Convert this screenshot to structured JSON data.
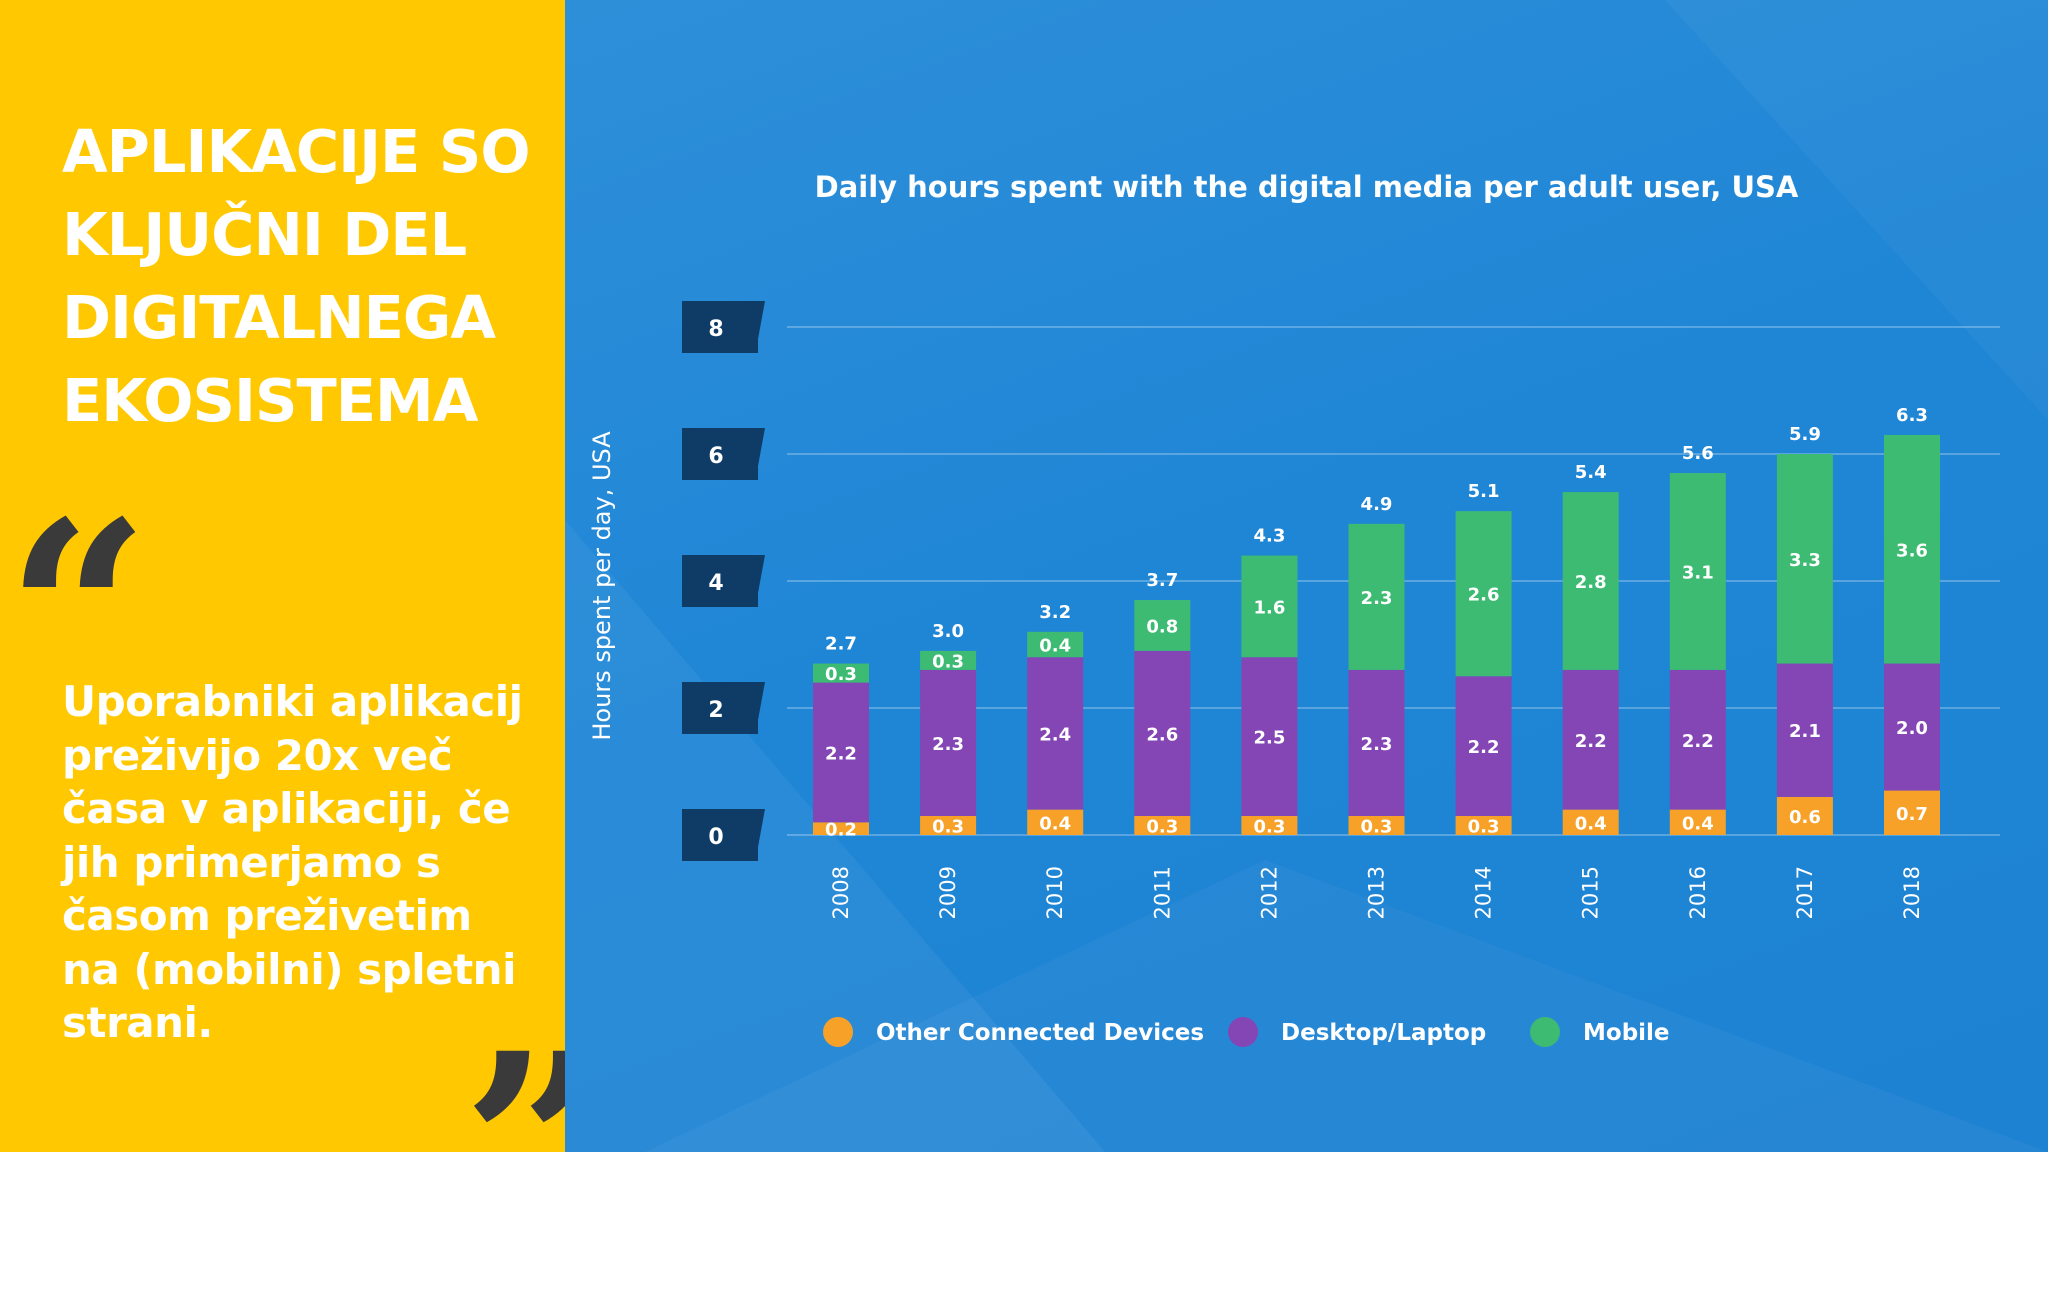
{
  "left_panel": {
    "heading": "APLIKACIJE SO\nKLJUČNI DEL\nDIGITALNEGA\nEKOSISTEMA",
    "quote_open": "“",
    "quote_text": "Uporabniki aplikacij\npreživijo 20x več\nčasa v aplikaciji, če\njih primerjamo s\nčasom preživetim\nna (mobilni) spletni\nstrani.",
    "quote_close": "”",
    "background_color": "#FFC800"
  },
  "chart_data": {
    "type": "bar",
    "stacked": true,
    "title": "Daily hours spent with the digital media per adult user, USA",
    "ylabel": "Hours spent per day, USA",
    "xlabel": "",
    "ylim": [
      0,
      8
    ],
    "yticks": [
      0,
      2,
      4,
      6,
      8
    ],
    "grid": true,
    "legend_position": "bottom",
    "categories": [
      "2008",
      "2009",
      "2010",
      "2011",
      "2012",
      "2013",
      "2014",
      "2015",
      "2016",
      "2017",
      "2018"
    ],
    "series": [
      {
        "name": "Other Connected Devices",
        "color": "#F7A128",
        "values": [
          0.2,
          0.3,
          0.4,
          0.3,
          0.3,
          0.3,
          0.3,
          0.4,
          0.4,
          0.6,
          0.7
        ]
      },
      {
        "name": "Desktop/Laptop",
        "color": "#8446B4",
        "values": [
          2.2,
          2.3,
          2.4,
          2.6,
          2.5,
          2.3,
          2.2,
          2.2,
          2.2,
          2.1,
          2.0
        ]
      },
      {
        "name": "Mobile",
        "color": "#3DBB73",
        "values": [
          0.3,
          0.3,
          0.4,
          0.8,
          1.6,
          2.3,
          2.6,
          2.8,
          3.1,
          3.3,
          3.6
        ]
      }
    ],
    "totals": [
      2.7,
      3.0,
      3.2,
      3.7,
      4.3,
      4.9,
      5.1,
      5.4,
      5.6,
      5.9,
      6.3
    ]
  }
}
